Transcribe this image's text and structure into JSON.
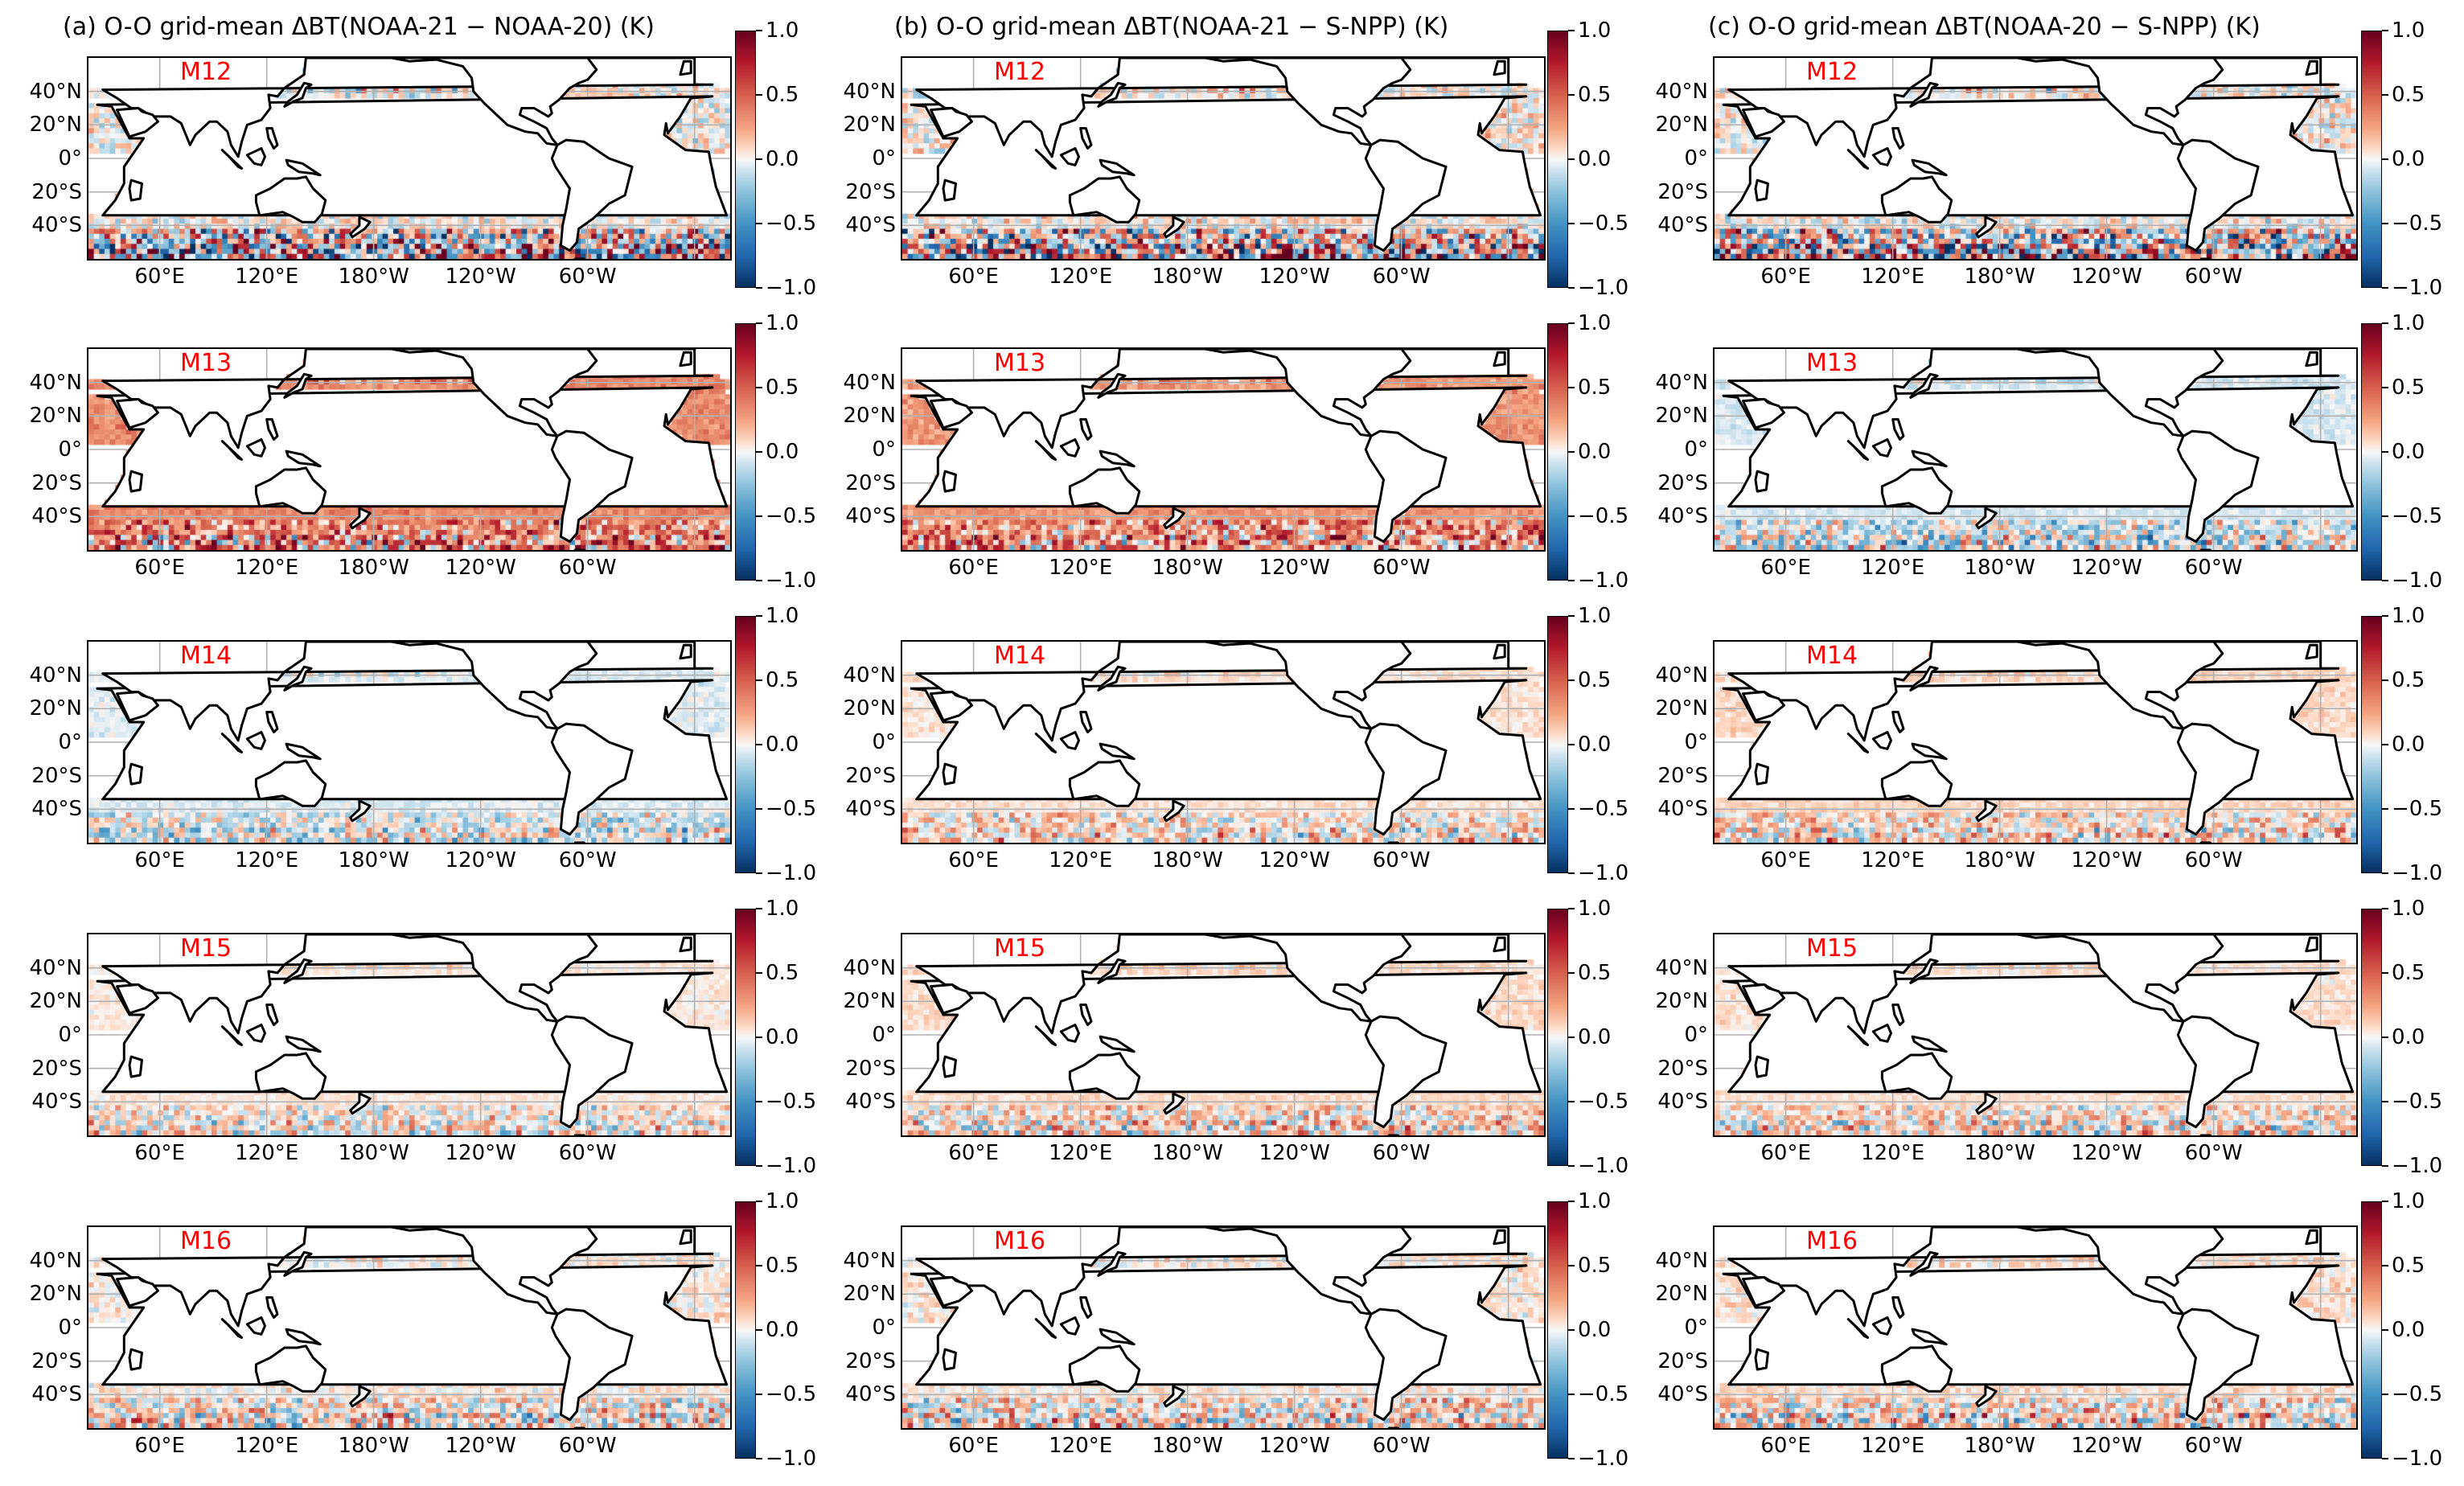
{
  "figure": {
    "panels": [
      {
        "title": "(a) O-O grid-mean ΔBT(NOAA-21 − NOAA-20) (K)"
      },
      {
        "title": "(b) O-O grid-mean ΔBT(NOAA-21 − S-NPP) (K)"
      },
      {
        "title": "(c) O-O grid-mean ΔBT(NOAA-20 − S-NPP) (K)"
      }
    ],
    "bands": [
      "M12",
      "M13",
      "M14",
      "M15",
      "M16"
    ],
    "lat_labels": [
      "40°N",
      "20°N",
      "0°",
      "20°S",
      "40°S"
    ],
    "lon_labels": [
      "60°E",
      "120°E",
      "180°W",
      "120°W",
      "60°W"
    ],
    "colorbar_ticks": [
      "1.0",
      "0.5",
      "0.0",
      "−0.5",
      "−1.0"
    ],
    "colors": {
      "band_label": "#ff0000",
      "cmap_low": "#053061",
      "cmap_mid": "#f7f7f7",
      "cmap_high": "#67001f",
      "grid": "#b0b0b0",
      "coast": "#000000"
    }
  },
  "chart_data": {
    "type": "heatmap",
    "projection": "PlateCarree, central_longitude=180",
    "lon_range": [
      0,
      360
    ],
    "lat_range": [
      -60,
      60
    ],
    "lat_ticks": [
      40,
      20,
      0,
      -20,
      -40
    ],
    "lon_ticks": [
      60,
      120,
      180,
      240,
      300
    ],
    "color_range": [
      -1.0,
      1.0
    ],
    "colorbar_ticks": [
      1.0,
      0.5,
      0.0,
      -0.5,
      -1.0
    ],
    "colormap": "RdBu_r",
    "units": "K",
    "panels": [
      {
        "name": "NOAA-21 − NOAA-20",
        "bands": [
          {
            "band": "M12",
            "mean_bias": 0.0,
            "noise": 0.25,
            "southern_ocean_noise": 0.9
          },
          {
            "band": "M13",
            "mean_bias": 0.35,
            "noise": 0.12,
            "southern_ocean_noise": 0.5
          },
          {
            "band": "M14",
            "mean_bias": -0.05,
            "noise": 0.08,
            "southern_ocean_noise": 0.35
          },
          {
            "band": "M15",
            "mean_bias": 0.04,
            "noise": 0.07,
            "southern_ocean_noise": 0.35
          },
          {
            "band": "M16",
            "mean_bias": 0.03,
            "noise": 0.14,
            "southern_ocean_noise": 0.4
          }
        ]
      },
      {
        "name": "NOAA-21 − S-NPP",
        "bands": [
          {
            "band": "M12",
            "mean_bias": 0.02,
            "noise": 0.25,
            "southern_ocean_noise": 0.9
          },
          {
            "band": "M13",
            "mean_bias": 0.3,
            "noise": 0.12,
            "southern_ocean_noise": 0.5
          },
          {
            "band": "M14",
            "mean_bias": 0.06,
            "noise": 0.08,
            "southern_ocean_noise": 0.35
          },
          {
            "band": "M15",
            "mean_bias": 0.08,
            "noise": 0.08,
            "southern_ocean_noise": 0.35
          },
          {
            "band": "M16",
            "mean_bias": 0.04,
            "noise": 0.14,
            "southern_ocean_noise": 0.4
          }
        ]
      },
      {
        "name": "NOAA-20 − S-NPP",
        "bands": [
          {
            "band": "M12",
            "mean_bias": 0.02,
            "noise": 0.25,
            "southern_ocean_noise": 0.9
          },
          {
            "band": "M13",
            "mean_bias": -0.07,
            "noise": 0.08,
            "southern_ocean_noise": 0.45
          },
          {
            "band": "M14",
            "mean_bias": 0.09,
            "noise": 0.08,
            "southern_ocean_noise": 0.35
          },
          {
            "band": "M15",
            "mean_bias": 0.06,
            "noise": 0.08,
            "southern_ocean_noise": 0.35
          },
          {
            "band": "M16",
            "mean_bias": 0.06,
            "noise": 0.14,
            "southern_ocean_noise": 0.4
          }
        ]
      }
    ]
  }
}
